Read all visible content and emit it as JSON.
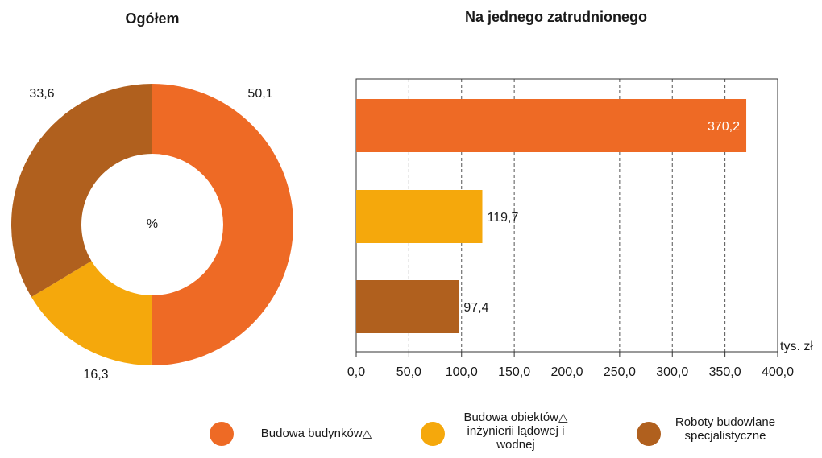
{
  "chart_data": [
    {
      "type": "donut",
      "title": "Ogółem",
      "center_label": "%",
      "categories": [
        "Budowa budynków△",
        "Budowa obiektów△ inżynierii lądowej i wodnej",
        "Roboty budowlane specjalistyczne"
      ],
      "values": [
        50.1,
        16.3,
        33.6
      ],
      "value_labels": [
        "50,1",
        "16,3",
        "33,6"
      ],
      "colors": [
        "#ee6a25",
        "#f5a80c",
        "#b0601e"
      ]
    },
    {
      "type": "hbar",
      "title": "Na jednego zatrudnionego",
      "values": [
        370.2,
        119.7,
        97.4
      ],
      "value_labels": [
        "370,2",
        "119,7",
        "97,4"
      ],
      "colors": [
        "#ee6a25",
        "#f5a80c",
        "#b0601e"
      ],
      "xlim": [
        0,
        400
      ],
      "xticks": [
        {
          "value": 0,
          "label": "0,0"
        },
        {
          "value": 50,
          "label": "50,0"
        },
        {
          "value": 100,
          "label": "100,0"
        },
        {
          "value": 150,
          "label": "150,0"
        },
        {
          "value": 200,
          "label": "200,0"
        },
        {
          "value": 250,
          "label": "250,0"
        },
        {
          "value": 300,
          "label": "300,0"
        },
        {
          "value": 350,
          "label": "350,0"
        },
        {
          "value": 400,
          "label": "400,0"
        }
      ],
      "x_label": "tys. zł",
      "grid": true
    }
  ]
}
